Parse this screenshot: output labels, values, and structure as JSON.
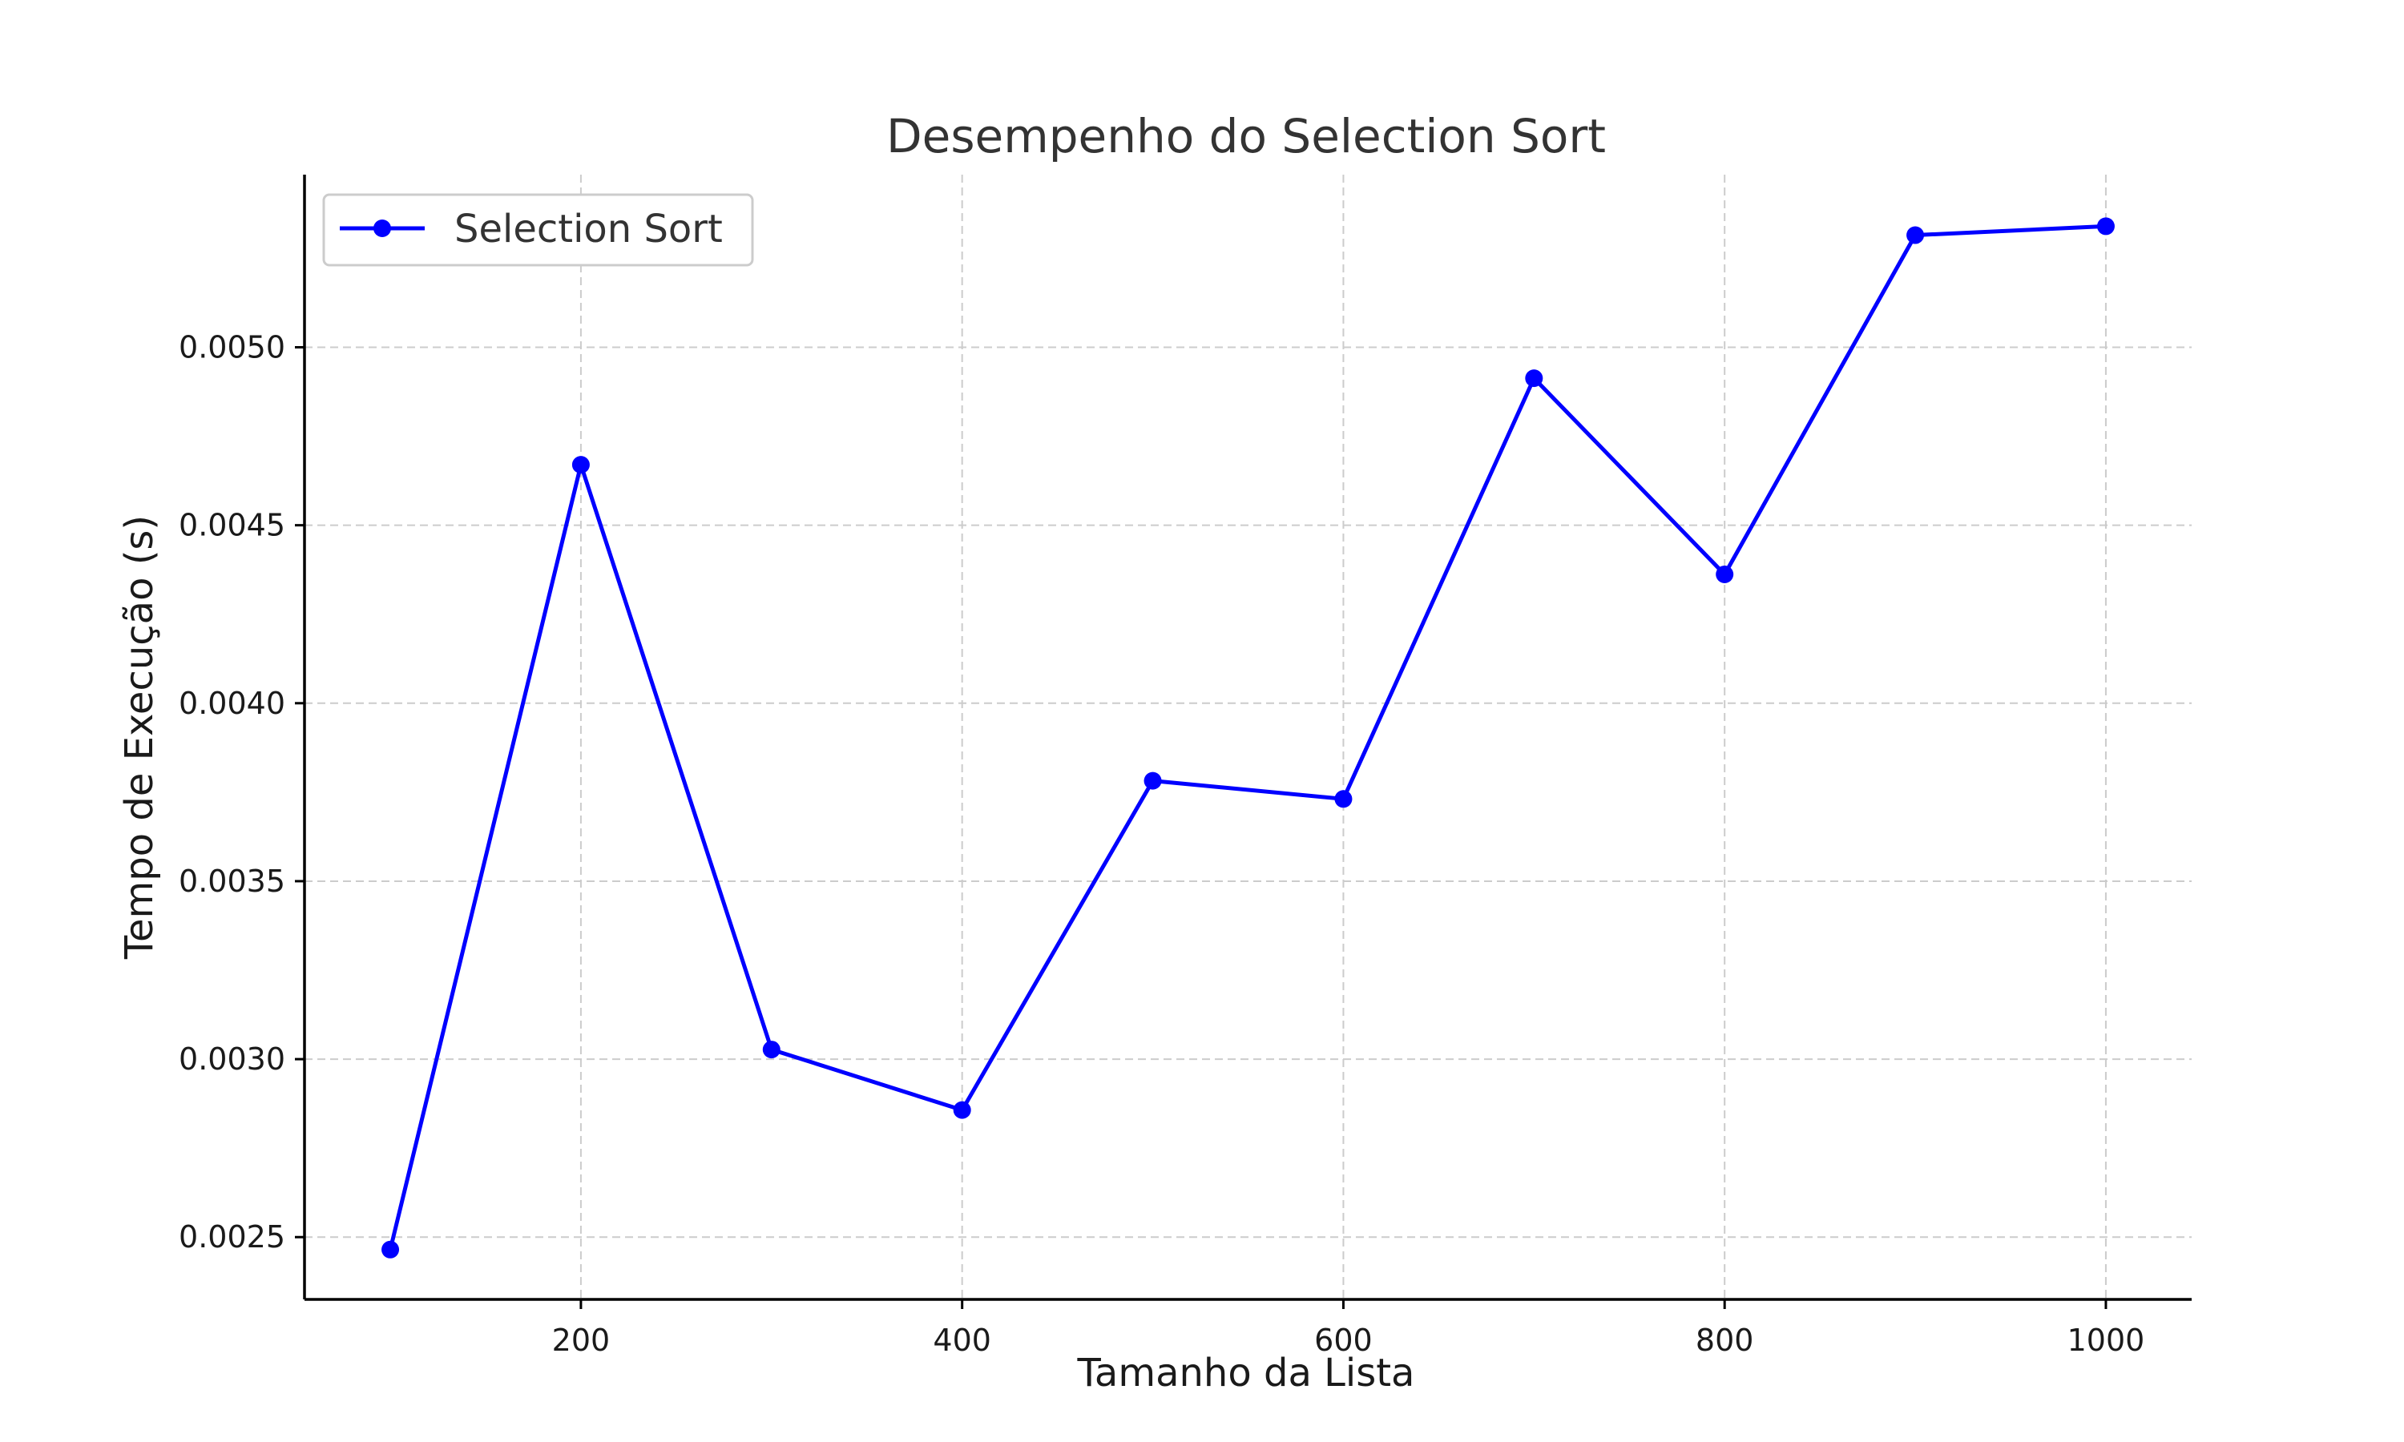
{
  "chart_data": {
    "type": "line",
    "title": "Desempenho do Selection Sort",
    "xlabel": "Tamanho da Lista",
    "ylabel": "Tempo de Execução (s)",
    "x": [
      100,
      200,
      300,
      400,
      500,
      600,
      700,
      800,
      900,
      1000
    ],
    "series": [
      {
        "name": "Selection Sort",
        "values": [
          0.002465,
          0.00467,
          0.003027,
          0.002857,
          0.003782,
          0.003731,
          0.004913,
          0.004362,
          0.005315,
          0.00534
        ],
        "color": "#0000ff",
        "marker": "circle"
      }
    ],
    "xlim": [
      55,
      1045
    ],
    "ylim": [
      0.002325,
      0.005485
    ],
    "xticks": [
      200,
      400,
      600,
      800,
      1000
    ],
    "xtick_labels": [
      "200",
      "400",
      "600",
      "800",
      "1000"
    ],
    "yticks": [
      0.0025,
      0.003,
      0.0035,
      0.004,
      0.0045,
      0.005
    ],
    "ytick_labels": [
      "0.0025",
      "0.0030",
      "0.0035",
      "0.0040",
      "0.0045",
      "0.0050"
    ],
    "grid": true,
    "legend_position": "top-left"
  }
}
